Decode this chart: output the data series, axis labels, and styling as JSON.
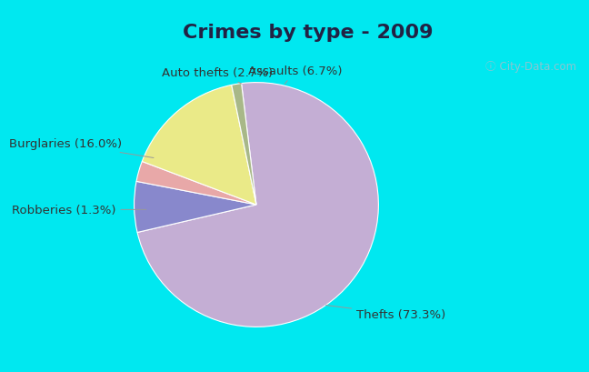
{
  "title": "Crimes by type - 2009",
  "slices": [
    {
      "label": "Thefts (73.3%)",
      "value": 73.3,
      "color": "#c4aed4"
    },
    {
      "label": "Assaults (6.7%)",
      "value": 6.7,
      "color": "#8888cc"
    },
    {
      "label": "Auto thefts (2.7%)",
      "value": 2.7,
      "color": "#e8a8a8"
    },
    {
      "label": "Burglaries (16.0%)",
      "value": 16.0,
      "color": "#eaea88"
    },
    {
      "label": "Robberies (1.3%)",
      "value": 1.3,
      "color": "#a8b888"
    }
  ],
  "bg_cyan": "#00e8f0",
  "bg_main_top": "#e8f8f0",
  "bg_main_bottom": "#d0e8d8",
  "title_color": "#222244",
  "title_fontsize": 16,
  "label_fontsize": 9.5,
  "label_color": "#333333",
  "watermark": "ⓘ City-Data.com",
  "watermark_color": "#a0c0cc"
}
